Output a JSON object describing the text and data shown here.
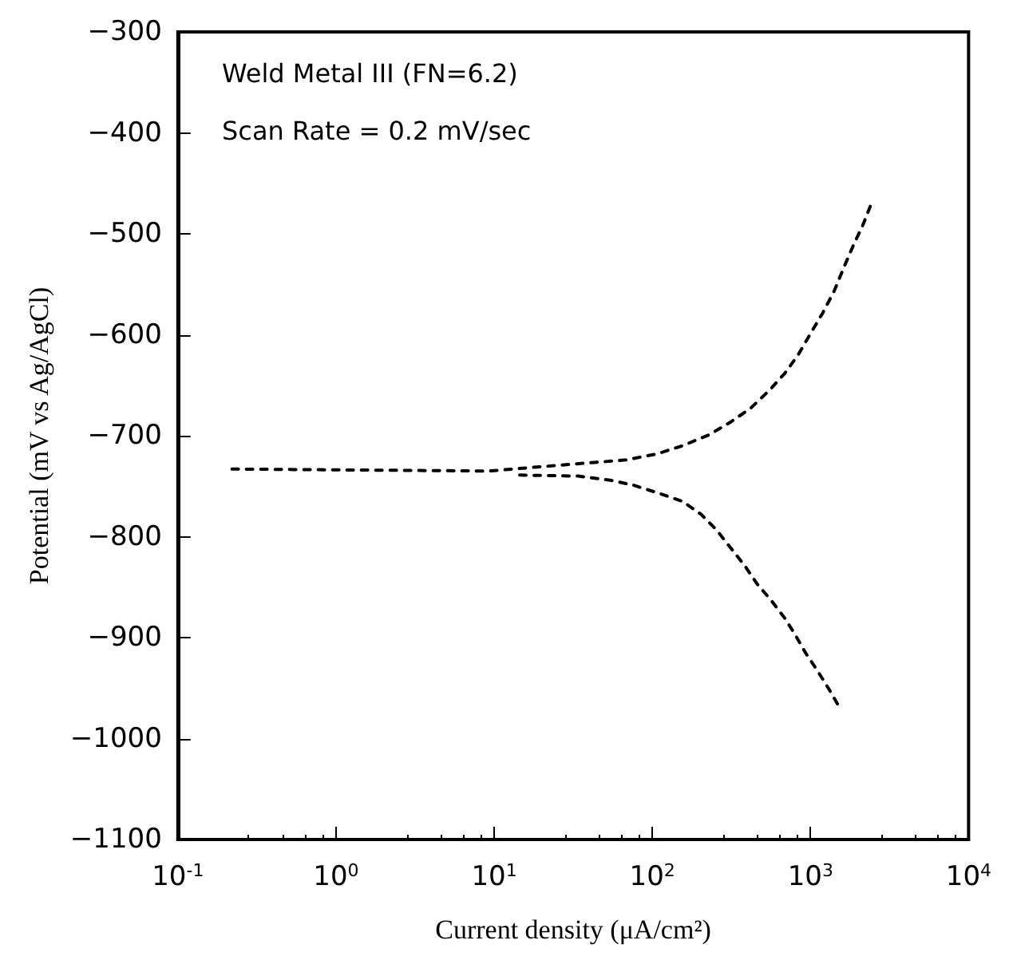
{
  "chart_data": {
    "type": "line",
    "xlabel": "Current density (μA/cm²)",
    "ylabel": "Potential (mV vs Ag/AgCl)",
    "annotations": [
      "Weld Metal III (FN=6.2)",
      "Scan Rate = 0.2 mV/sec"
    ],
    "log": "x",
    "xlim": [
      0.1,
      10000
    ],
    "ylim": [
      -1100,
      -300
    ],
    "xticks": [
      {
        "value": 0.1,
        "label": "10$^{-1}$"
      },
      {
        "value": 1,
        "label": "10$^{0}$"
      },
      {
        "value": 10,
        "label": "10$^{1}$"
      },
      {
        "value": 100,
        "label": "10$^{2}$"
      },
      {
        "value": 1000,
        "label": "10$^{3}$"
      },
      {
        "value": 10000,
        "label": "10$^{4}$"
      }
    ],
    "yticks": [
      -1100,
      -1000,
      -900,
      -800,
      -700,
      -600,
      -500,
      -400,
      -300
    ],
    "grid": false,
    "marker": "none",
    "line_style": "dashed",
    "series": [
      {
        "color": "#000000",
        "x": [
          0.22,
          9.2,
          32,
          68,
          107,
          155,
          229,
          309,
          417,
          550,
          690,
          835,
          1000,
          1200,
          1410,
          1630,
          1860,
          2150,
          2400
        ],
        "values": [
          -733,
          -735,
          -728,
          -724,
          -718,
          -710,
          -699,
          -687,
          -673,
          -655,
          -638,
          -620,
          -599,
          -578,
          -557,
          -533,
          -512,
          -491,
          -472
        ]
      },
      {
        "color": "#000000",
        "x": [
          14.5,
          34,
          54,
          76,
          110,
          155,
          204,
          257,
          309,
          381,
          461,
          564,
          690,
          800,
          930,
          1120,
          1320,
          1550
        ],
        "values": [
          -739,
          -740,
          -744,
          -749,
          -757,
          -765,
          -778,
          -794,
          -810,
          -828,
          -847,
          -863,
          -881,
          -897,
          -915,
          -934,
          -952,
          -971
        ]
      }
    ]
  }
}
